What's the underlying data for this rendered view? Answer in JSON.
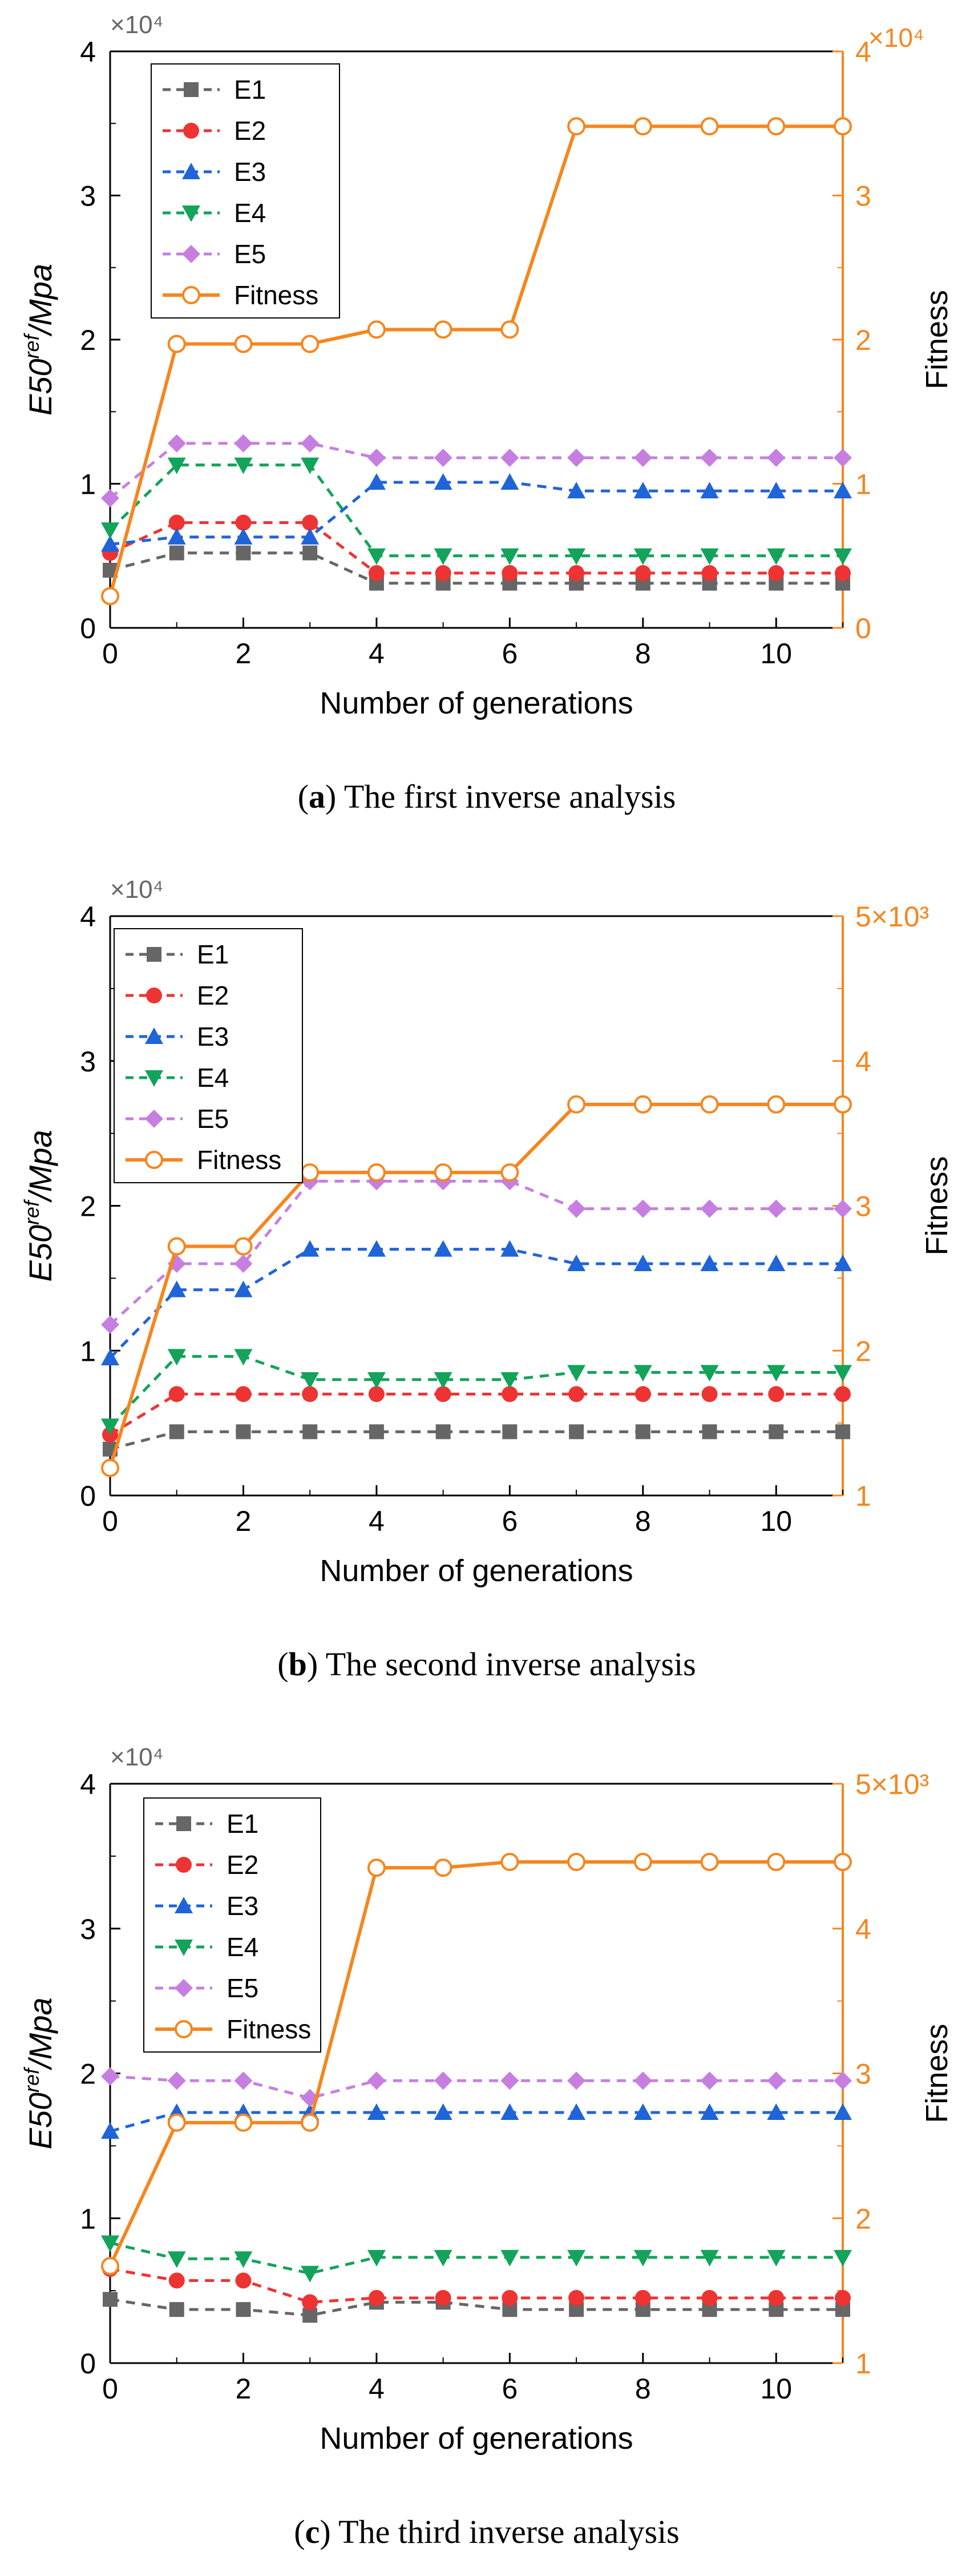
{
  "figure": {
    "caption_open": "(",
    "caption_close": ")"
  },
  "colors": {
    "E1": "#666666",
    "E2": "#ee3333",
    "E3": "#1f64d8",
    "E4": "#13a35a",
    "E5": "#c67fe0",
    "Fitness": "#f5861f",
    "axis": "#000000",
    "right_axis": "#f5861f"
  },
  "chart_data": [
    {
      "type": "line",
      "panel_letter": "a",
      "caption": "The first inverse analysis",
      "xlabel": "Number of generations",
      "ylabel_left": "E50",
      "ylabel_left_sup": "ref",
      "ylabel_left_tail": "/Mpa",
      "ylabel_right": "Fitness",
      "left_multiplier": "×10⁴",
      "right_multiplier": "×10⁴",
      "xlim": [
        0,
        11
      ],
      "x_ticks": [
        0,
        2,
        4,
        6,
        8,
        10
      ],
      "x_tick_labels": [
        "0",
        "2",
        "4",
        "6",
        "8",
        "10"
      ],
      "ylim_left": [
        0,
        4
      ],
      "left_ticks": [
        0,
        1,
        2,
        3,
        4
      ],
      "left_tick_labels": [
        "0",
        "1",
        "2",
        "3",
        "4"
      ],
      "ylim_right": [
        0,
        4
      ],
      "right_ticks": [
        0,
        1,
        2,
        3,
        4
      ],
      "right_tick_labels": [
        "0",
        "1",
        "2",
        "3",
        "4"
      ],
      "legend_position": "top-left",
      "x": [
        0,
        1,
        2,
        3,
        4,
        5,
        6,
        7,
        8,
        9,
        10,
        11
      ],
      "series": [
        {
          "name": "E1",
          "marker": "square",
          "values": [
            0.4,
            0.52,
            0.52,
            0.52,
            0.31,
            0.31,
            0.31,
            0.31,
            0.31,
            0.31,
            0.31,
            0.31
          ]
        },
        {
          "name": "E2",
          "marker": "circle",
          "values": [
            0.52,
            0.73,
            0.73,
            0.73,
            0.38,
            0.38,
            0.38,
            0.38,
            0.38,
            0.38,
            0.38,
            0.38
          ]
        },
        {
          "name": "E3",
          "marker": "triangle-up",
          "values": [
            0.58,
            0.63,
            0.63,
            0.63,
            1.01,
            1.01,
            1.01,
            0.95,
            0.95,
            0.95,
            0.95,
            0.95
          ]
        },
        {
          "name": "E4",
          "marker": "triangle-down",
          "values": [
            0.68,
            1.13,
            1.13,
            1.13,
            0.5,
            0.5,
            0.5,
            0.5,
            0.5,
            0.5,
            0.5,
            0.5
          ]
        },
        {
          "name": "E5",
          "marker": "diamond",
          "values": [
            0.9,
            1.28,
            1.28,
            1.28,
            1.18,
            1.18,
            1.18,
            1.18,
            1.18,
            1.18,
            1.18,
            1.18
          ]
        },
        {
          "name": "Fitness",
          "marker": "open-circle",
          "axis": "right",
          "values": [
            0.22,
            1.97,
            1.97,
            1.97,
            2.07,
            2.07,
            2.07,
            3.48,
            3.48,
            3.48,
            3.48,
            3.48
          ]
        }
      ]
    },
    {
      "type": "line",
      "panel_letter": "b",
      "caption": "The second inverse analysis",
      "xlabel": "Number of generations",
      "ylabel_left": "E50",
      "ylabel_left_sup": "ref",
      "ylabel_left_tail": "/Mpa",
      "ylabel_right": "Fitness",
      "left_multiplier": "×10⁴",
      "right_multiplier": "",
      "xlim": [
        0,
        11
      ],
      "x_ticks": [
        0,
        2,
        4,
        6,
        8,
        10
      ],
      "x_tick_labels": [
        "0",
        "2",
        "4",
        "6",
        "8",
        "10"
      ],
      "ylim_left": [
        0,
        4
      ],
      "left_ticks": [
        0,
        1,
        2,
        3,
        4
      ],
      "left_tick_labels": [
        "0",
        "1",
        "2",
        "3",
        "4"
      ],
      "ylim_right": [
        1,
        5
      ],
      "right_ticks": [
        1,
        2,
        3,
        4,
        5
      ],
      "right_tick_labels": [
        "1",
        "2",
        "3",
        "4",
        "5×10³"
      ],
      "legend_position": "top-left",
      "x": [
        0,
        1,
        2,
        3,
        4,
        5,
        6,
        7,
        8,
        9,
        10,
        11
      ],
      "series": [
        {
          "name": "E1",
          "marker": "square",
          "values": [
            0.32,
            0.44,
            0.44,
            0.44,
            0.44,
            0.44,
            0.44,
            0.44,
            0.44,
            0.44,
            0.44,
            0.44
          ]
        },
        {
          "name": "E2",
          "marker": "circle",
          "values": [
            0.42,
            0.7,
            0.7,
            0.7,
            0.7,
            0.7,
            0.7,
            0.7,
            0.7,
            0.7,
            0.7,
            0.7
          ]
        },
        {
          "name": "E3",
          "marker": "triangle-up",
          "values": [
            0.95,
            1.42,
            1.42,
            1.7,
            1.7,
            1.7,
            1.7,
            1.6,
            1.6,
            1.6,
            1.6,
            1.6
          ]
        },
        {
          "name": "E4",
          "marker": "triangle-down",
          "values": [
            0.48,
            0.96,
            0.96,
            0.8,
            0.8,
            0.8,
            0.8,
            0.85,
            0.85,
            0.85,
            0.85,
            0.85
          ]
        },
        {
          "name": "E5",
          "marker": "diamond",
          "values": [
            1.18,
            1.6,
            1.6,
            2.17,
            2.17,
            2.17,
            2.17,
            1.98,
            1.98,
            1.98,
            1.98,
            1.98
          ]
        },
        {
          "name": "Fitness",
          "marker": "open-circle",
          "axis": "right",
          "values": [
            1.19,
            2.72,
            2.72,
            3.23,
            3.23,
            3.23,
            3.23,
            3.7,
            3.7,
            3.7,
            3.7,
            3.7
          ]
        }
      ]
    },
    {
      "type": "line",
      "panel_letter": "c",
      "caption": "The third inverse analysis",
      "xlabel": "Number of generations",
      "ylabel_left": "E50",
      "ylabel_left_sup": "ref",
      "ylabel_left_tail": "/Mpa",
      "ylabel_right": "Fitness",
      "left_multiplier": "×10⁴",
      "right_multiplier": "",
      "xlim": [
        0,
        11
      ],
      "x_ticks": [
        0,
        2,
        4,
        6,
        8,
        10
      ],
      "x_tick_labels": [
        "0",
        "2",
        "4",
        "6",
        "8",
        "10"
      ],
      "ylim_left": [
        0,
        4
      ],
      "left_ticks": [
        0,
        1,
        2,
        3,
        4
      ],
      "left_tick_labels": [
        "0",
        "1",
        "2",
        "3",
        "4"
      ],
      "ylim_right": [
        1,
        5
      ],
      "right_ticks": [
        1,
        2,
        3,
        4,
        5
      ],
      "right_tick_labels": [
        "1",
        "2",
        "3",
        "4",
        "5×10³"
      ],
      "legend_position": "top-left",
      "x": [
        0,
        1,
        2,
        3,
        4,
        5,
        6,
        7,
        8,
        9,
        10,
        11
      ],
      "series": [
        {
          "name": "E1",
          "marker": "square",
          "values": [
            0.44,
            0.37,
            0.37,
            0.33,
            0.42,
            0.42,
            0.37,
            0.37,
            0.37,
            0.37,
            0.37,
            0.37
          ]
        },
        {
          "name": "E2",
          "marker": "circle",
          "values": [
            0.65,
            0.57,
            0.57,
            0.42,
            0.45,
            0.45,
            0.45,
            0.45,
            0.45,
            0.45,
            0.45,
            0.45
          ]
        },
        {
          "name": "E3",
          "marker": "triangle-up",
          "values": [
            1.6,
            1.73,
            1.73,
            1.73,
            1.73,
            1.73,
            1.73,
            1.73,
            1.73,
            1.73,
            1.73,
            1.73
          ]
        },
        {
          "name": "E4",
          "marker": "triangle-down",
          "values": [
            0.83,
            0.72,
            0.72,
            0.62,
            0.73,
            0.73,
            0.73,
            0.73,
            0.73,
            0.73,
            0.73,
            0.73
          ]
        },
        {
          "name": "E5",
          "marker": "diamond",
          "values": [
            1.98,
            1.95,
            1.95,
            1.83,
            1.95,
            1.95,
            1.95,
            1.95,
            1.95,
            1.95,
            1.95,
            1.95
          ]
        },
        {
          "name": "Fitness",
          "marker": "open-circle",
          "axis": "right",
          "values": [
            1.67,
            2.66,
            2.66,
            2.66,
            4.42,
            4.42,
            4.46,
            4.46,
            4.46,
            4.46,
            4.46,
            4.46
          ]
        }
      ]
    }
  ]
}
